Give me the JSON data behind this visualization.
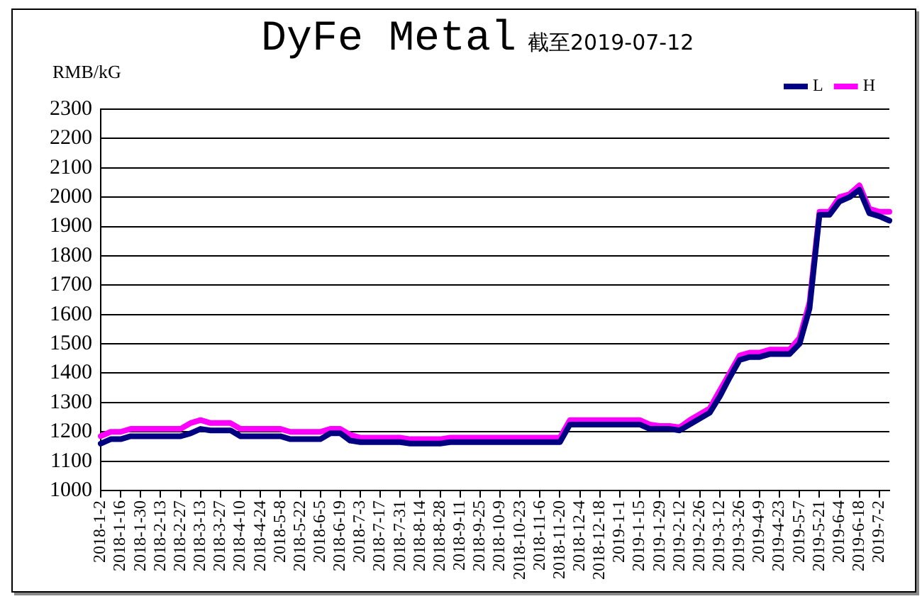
{
  "chart_data": {
    "type": "line",
    "title": "DyFe Metal",
    "subtitle": "截至2019-07-12",
    "ylabel": "RMB/kG",
    "categories": [
      "2018-1-2",
      null,
      "2018-1-16",
      null,
      "2018-1-30",
      null,
      "2018-2-13",
      null,
      "2018-2-27",
      null,
      "2018-3-13",
      null,
      "2018-3-27",
      null,
      "2018-4-10",
      null,
      "2018-4-24",
      null,
      "2018-5-8",
      null,
      "2018-5-22",
      null,
      "2018-6-5",
      null,
      "2018-6-19",
      null,
      "2018-7-3",
      null,
      "2018-7-17",
      null,
      "2018-7-31",
      null,
      "2018-8-14",
      null,
      "2018-8-28",
      null,
      "2018-9-11",
      null,
      "2018-9-25",
      null,
      "2018-10-9",
      null,
      "2018-10-23",
      null,
      "2018-11-6",
      null,
      "2018-11-20",
      null,
      "2018-12-4",
      null,
      "2018-12-18",
      null,
      "2019-1-1",
      null,
      "2019-1-15",
      null,
      "2019-1-29",
      null,
      "2019-2-12",
      null,
      "2019-2-26",
      null,
      "2019-3-12",
      null,
      "2019-3-26",
      null,
      "2019-4-9",
      null,
      "2019-4-23",
      null,
      "2019-5-7",
      null,
      "2019-5-21",
      null,
      "2019-6-4",
      null,
      "2019-6-18",
      null,
      "2019-7-2",
      null
    ],
    "series": [
      {
        "name": "L",
        "color": "#000080",
        "values": [
          1160,
          1175,
          1175,
          1185,
          1185,
          1185,
          1185,
          1185,
          1185,
          1195,
          1210,
          1205,
          1205,
          1205,
          1185,
          1185,
          1185,
          1185,
          1185,
          1175,
          1175,
          1175,
          1175,
          1195,
          1195,
          1170,
          1165,
          1165,
          1165,
          1165,
          1165,
          1160,
          1160,
          1160,
          1160,
          1165,
          1165,
          1165,
          1165,
          1165,
          1165,
          1165,
          1165,
          1165,
          1165,
          1165,
          1165,
          1225,
          1225,
          1225,
          1225,
          1225,
          1225,
          1225,
          1225,
          1210,
          1210,
          1210,
          1205,
          1225,
          1245,
          1265,
          1320,
          1385,
          1445,
          1455,
          1455,
          1465,
          1465,
          1465,
          1500,
          1620,
          1940,
          1940,
          1985,
          2000,
          2025,
          1945,
          1935,
          1920
        ]
      },
      {
        "name": "H",
        "color": "#ff00ff",
        "values": [
          1185,
          1200,
          1200,
          1210,
          1210,
          1210,
          1210,
          1210,
          1210,
          1230,
          1240,
          1230,
          1230,
          1230,
          1210,
          1210,
          1210,
          1210,
          1210,
          1200,
          1200,
          1200,
          1200,
          1210,
          1210,
          1190,
          1180,
          1180,
          1180,
          1180,
          1180,
          1175,
          1175,
          1175,
          1175,
          1180,
          1180,
          1180,
          1180,
          1180,
          1180,
          1180,
          1180,
          1180,
          1180,
          1180,
          1180,
          1240,
          1240,
          1240,
          1240,
          1240,
          1240,
          1240,
          1240,
          1225,
          1220,
          1220,
          1215,
          1240,
          1260,
          1280,
          1340,
          1400,
          1460,
          1470,
          1470,
          1480,
          1480,
          1480,
          1520,
          1640,
          1950,
          1950,
          2000,
          2010,
          2040,
          1960,
          1950,
          1950
        ]
      }
    ],
    "ylim": [
      1000,
      2300
    ],
    "yticks": [
      1000,
      1100,
      1200,
      1300,
      1400,
      1500,
      1600,
      1700,
      1800,
      1900,
      2000,
      2100,
      2200,
      2300
    ],
    "grid": "y",
    "legend": "top right",
    "marker": "none",
    "line_style": "solid"
  }
}
